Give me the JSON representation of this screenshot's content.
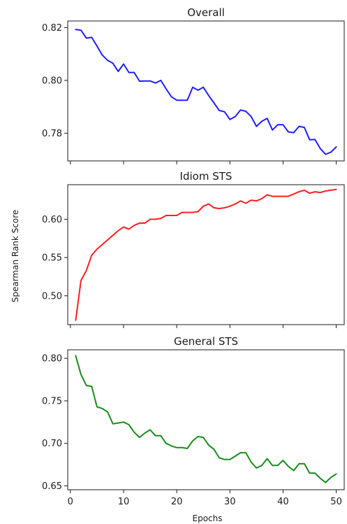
{
  "chart_data": {
    "type": "line",
    "shared_xlabel": "Epochs",
    "shared_ylabel": "Spearman Rank Score",
    "xlim": [
      -0.5,
      51.5
    ],
    "xticks": [
      0,
      10,
      20,
      30,
      40,
      50
    ],
    "panels": [
      {
        "title": "Overall",
        "color": "#1f1fff",
        "ylim": [
          0.7695,
          0.8225
        ],
        "yticks": [
          0.78,
          0.8,
          0.82
        ],
        "ytick_labels": [
          "0.78",
          "0.80",
          "0.82"
        ],
        "x": [
          1,
          2,
          3,
          4,
          5,
          6,
          7,
          8,
          9,
          10,
          11,
          12,
          13,
          14,
          15,
          16,
          17,
          18,
          19,
          20,
          21,
          22,
          23,
          24,
          25,
          26,
          27,
          28,
          29,
          30,
          31,
          32,
          33,
          34,
          35,
          36,
          37,
          38,
          39,
          40,
          41,
          42,
          43,
          44,
          45,
          46,
          47,
          48,
          49,
          50
        ],
        "values": [
          0.8193,
          0.819,
          0.816,
          0.8163,
          0.813,
          0.8096,
          0.8076,
          0.8065,
          0.8034,
          0.8062,
          0.803,
          0.803,
          0.7997,
          0.7998,
          0.7998,
          0.799,
          0.8,
          0.7968,
          0.7938,
          0.7925,
          0.7925,
          0.7925,
          0.7974,
          0.7963,
          0.7974,
          0.7943,
          0.7915,
          0.7886,
          0.7881,
          0.7852,
          0.7863,
          0.7888,
          0.7883,
          0.7863,
          0.7826,
          0.7845,
          0.7856,
          0.7812,
          0.7832,
          0.7832,
          0.7805,
          0.7802,
          0.7826,
          0.7822,
          0.7775,
          0.7776,
          0.7742,
          0.772,
          0.7728,
          0.7748
        ]
      },
      {
        "title": "Idiom STS",
        "color": "#ff1f1f",
        "ylim": [
          0.4623,
          0.6452
        ],
        "yticks": [
          0.5,
          0.55,
          0.6
        ],
        "ytick_labels": [
          "0.50",
          "0.55",
          "0.60"
        ],
        "x": [
          1,
          2,
          3,
          4,
          5,
          6,
          7,
          8,
          9,
          10,
          11,
          12,
          13,
          14,
          15,
          16,
          17,
          18,
          19,
          20,
          21,
          22,
          23,
          24,
          25,
          26,
          27,
          28,
          29,
          30,
          31,
          32,
          33,
          34,
          35,
          36,
          37,
          38,
          39,
          40,
          41,
          42,
          43,
          44,
          45,
          46,
          47,
          48,
          49,
          50
        ],
        "values": [
          0.468,
          0.52,
          0.533,
          0.553,
          0.561,
          0.567,
          0.573,
          0.579,
          0.585,
          0.59,
          0.587,
          0.592,
          0.595,
          0.595,
          0.6,
          0.6,
          0.601,
          0.605,
          0.605,
          0.605,
          0.609,
          0.609,
          0.609,
          0.61,
          0.617,
          0.62,
          0.615,
          0.614,
          0.615,
          0.617,
          0.62,
          0.624,
          0.621,
          0.625,
          0.624,
          0.627,
          0.632,
          0.63,
          0.63,
          0.63,
          0.63,
          0.633,
          0.636,
          0.638,
          0.634,
          0.636,
          0.635,
          0.637,
          0.638,
          0.639
        ]
      },
      {
        "title": "General STS",
        "color": "#1a8c1a",
        "ylim": [
          0.6455,
          0.81
        ],
        "yticks": [
          0.65,
          0.7,
          0.75,
          0.8
        ],
        "ytick_labels": [
          "0.65",
          "0.70",
          "0.75",
          "0.80"
        ],
        "x": [
          1,
          2,
          3,
          4,
          5,
          6,
          7,
          8,
          9,
          10,
          11,
          12,
          13,
          14,
          15,
          16,
          17,
          18,
          19,
          20,
          21,
          22,
          23,
          24,
          25,
          26,
          27,
          28,
          29,
          30,
          31,
          32,
          33,
          34,
          35,
          36,
          37,
          38,
          39,
          40,
          41,
          42,
          43,
          44,
          45,
          46,
          47,
          48,
          49,
          50
        ],
        "values": [
          0.803,
          0.781,
          0.768,
          0.767,
          0.743,
          0.741,
          0.737,
          0.723,
          0.724,
          0.725,
          0.722,
          0.713,
          0.707,
          0.712,
          0.716,
          0.709,
          0.709,
          0.7,
          0.697,
          0.695,
          0.695,
          0.694,
          0.703,
          0.708,
          0.707,
          0.698,
          0.693,
          0.683,
          0.681,
          0.681,
          0.685,
          0.689,
          0.689,
          0.678,
          0.671,
          0.674,
          0.682,
          0.674,
          0.674,
          0.68,
          0.673,
          0.668,
          0.676,
          0.676,
          0.665,
          0.665,
          0.659,
          0.654,
          0.66,
          0.664
        ]
      }
    ]
  }
}
